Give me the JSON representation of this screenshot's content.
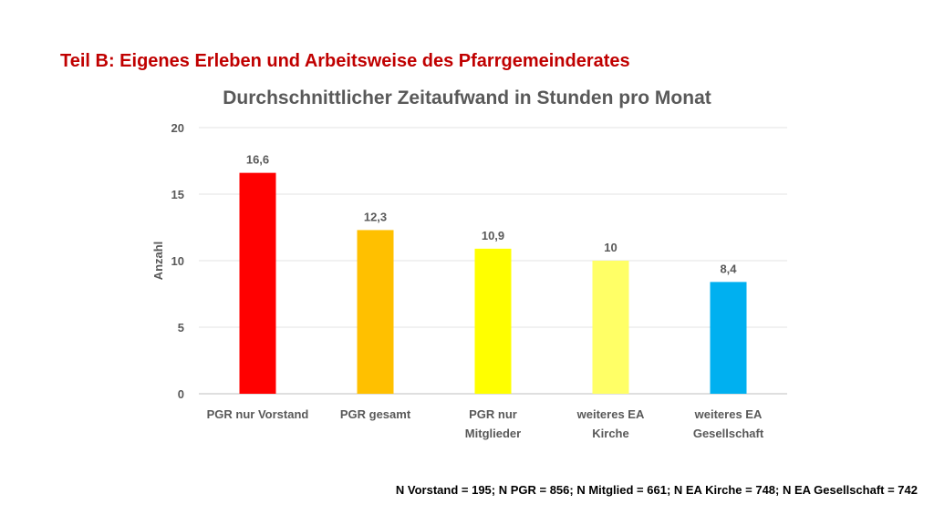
{
  "slide": {
    "title": "Teil B: Eigenes Erleben und Arbeitsweise des Pfarrgemeinderates",
    "footnote": "N Vorstand = 195; N PGR = 856; N Mitglied = 661; N EA Kirche = 748; N EA Gesellschaft = 742"
  },
  "chart_data": {
    "type": "bar",
    "title": "Durchschnittlicher Zeitaufwand in Stunden pro Monat",
    "xlabel": "",
    "ylabel": "Anzahl",
    "ylim": [
      0,
      20
    ],
    "yticks": [
      0,
      5,
      10,
      15,
      20
    ],
    "grid": true,
    "categories": [
      [
        "PGR nur Vorstand"
      ],
      [
        "PGR gesamt"
      ],
      [
        "PGR nur",
        "Mitglieder"
      ],
      [
        "weiteres EA",
        "Kirche"
      ],
      [
        "weiteres EA",
        "Gesellschaft"
      ]
    ],
    "values": [
      16.6,
      12.3,
      10.9,
      10,
      8.4
    ],
    "data_labels": [
      "16,6",
      "12,3",
      "10,9",
      "10",
      "8,4"
    ],
    "colors": [
      "#ff0000",
      "#ffc000",
      "#ffff00",
      "#ffff66",
      "#00b0f0"
    ]
  }
}
